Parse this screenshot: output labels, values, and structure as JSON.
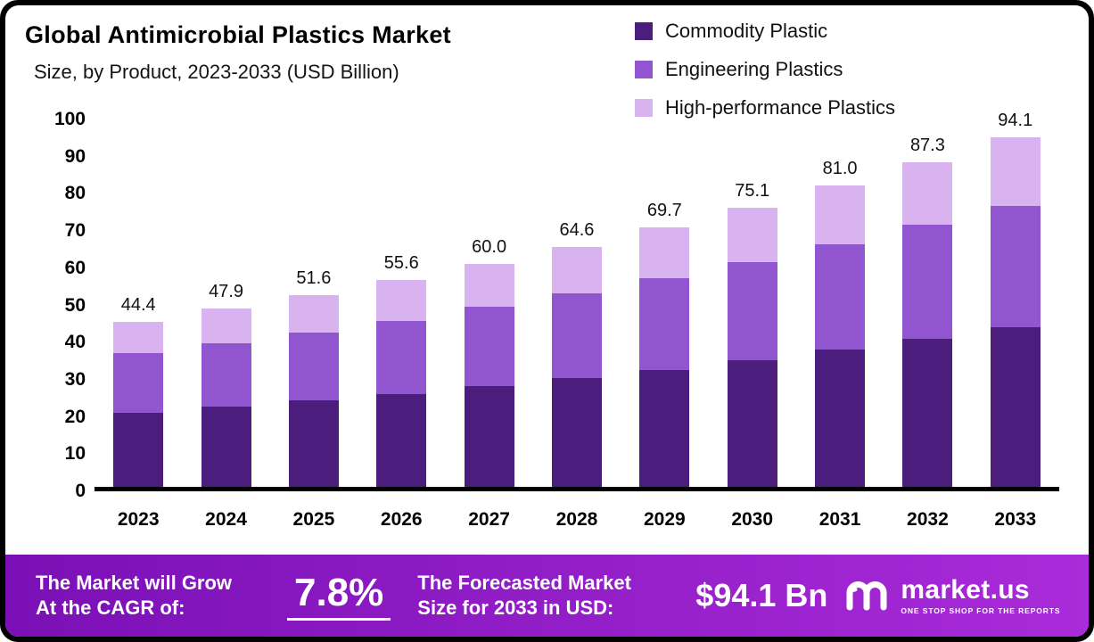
{
  "header": {
    "title": "Global Antimicrobial Plastics Market",
    "subtitle": "Size, by Product, 2023-2033 (USD Billion)"
  },
  "legend": [
    {
      "label": "Commodity Plastic",
      "color": "#4b1e7e"
    },
    {
      "label": "Engineering Plastics",
      "color": "#9155cf"
    },
    {
      "label": "High-performance Plastics",
      "color": "#d9b3ef"
    }
  ],
  "chart_data": {
    "type": "bar",
    "stacked": true,
    "title": "Global Antimicrobial Plastics Market Size, by Product, 2023-2033 (USD Billion)",
    "categories": [
      "2023",
      "2024",
      "2025",
      "2026",
      "2027",
      "2028",
      "2029",
      "2030",
      "2031",
      "2032",
      "2033"
    ],
    "series": [
      {
        "name": "Commodity Plastic",
        "color": "#4b1e7e",
        "values": [
          20.0,
          21.5,
          23.2,
          25.0,
          27.0,
          29.3,
          31.5,
          34.1,
          37.0,
          39.9,
          42.9
        ]
      },
      {
        "name": "Engineering Plastics",
        "color": "#9155cf",
        "values": [
          15.9,
          17.1,
          18.4,
          19.7,
          21.4,
          22.8,
          24.6,
          26.4,
          28.2,
          30.5,
          32.7
        ]
      },
      {
        "name": "High-performance Plastics",
        "color": "#d9b3ef",
        "values": [
          8.5,
          9.3,
          10.0,
          10.9,
          11.6,
          12.5,
          13.6,
          14.6,
          15.8,
          16.9,
          18.5
        ]
      }
    ],
    "totals": [
      44.4,
      47.9,
      51.6,
      55.6,
      60.0,
      64.6,
      69.7,
      75.1,
      81.0,
      87.3,
      94.1
    ],
    "total_labels": [
      "44.4",
      "47.9",
      "51.6",
      "55.6",
      "60.0",
      "64.6",
      "69.7",
      "75.1",
      "81.0",
      "87.3",
      "94.1"
    ],
    "xlabel": "",
    "ylabel": "",
    "ylim": [
      0,
      100
    ],
    "yticks": [
      0,
      10,
      20,
      30,
      40,
      50,
      60,
      70,
      80,
      90,
      100
    ],
    "grid": false,
    "legend_position": "top-right"
  },
  "footer": {
    "cagr_label": "The Market will Grow\nAt the CAGR of:",
    "cagr_value": "7.8%",
    "forecast_label": "The Forecasted Market\nSize for 2033 in USD:",
    "forecast_value": "$94.1 Bn",
    "brand": "market.us",
    "brand_tagline": "ONE STOP SHOP FOR THE REPORTS",
    "gradient_left": "#7a10b5",
    "gradient_right": "#a92bd9"
  }
}
